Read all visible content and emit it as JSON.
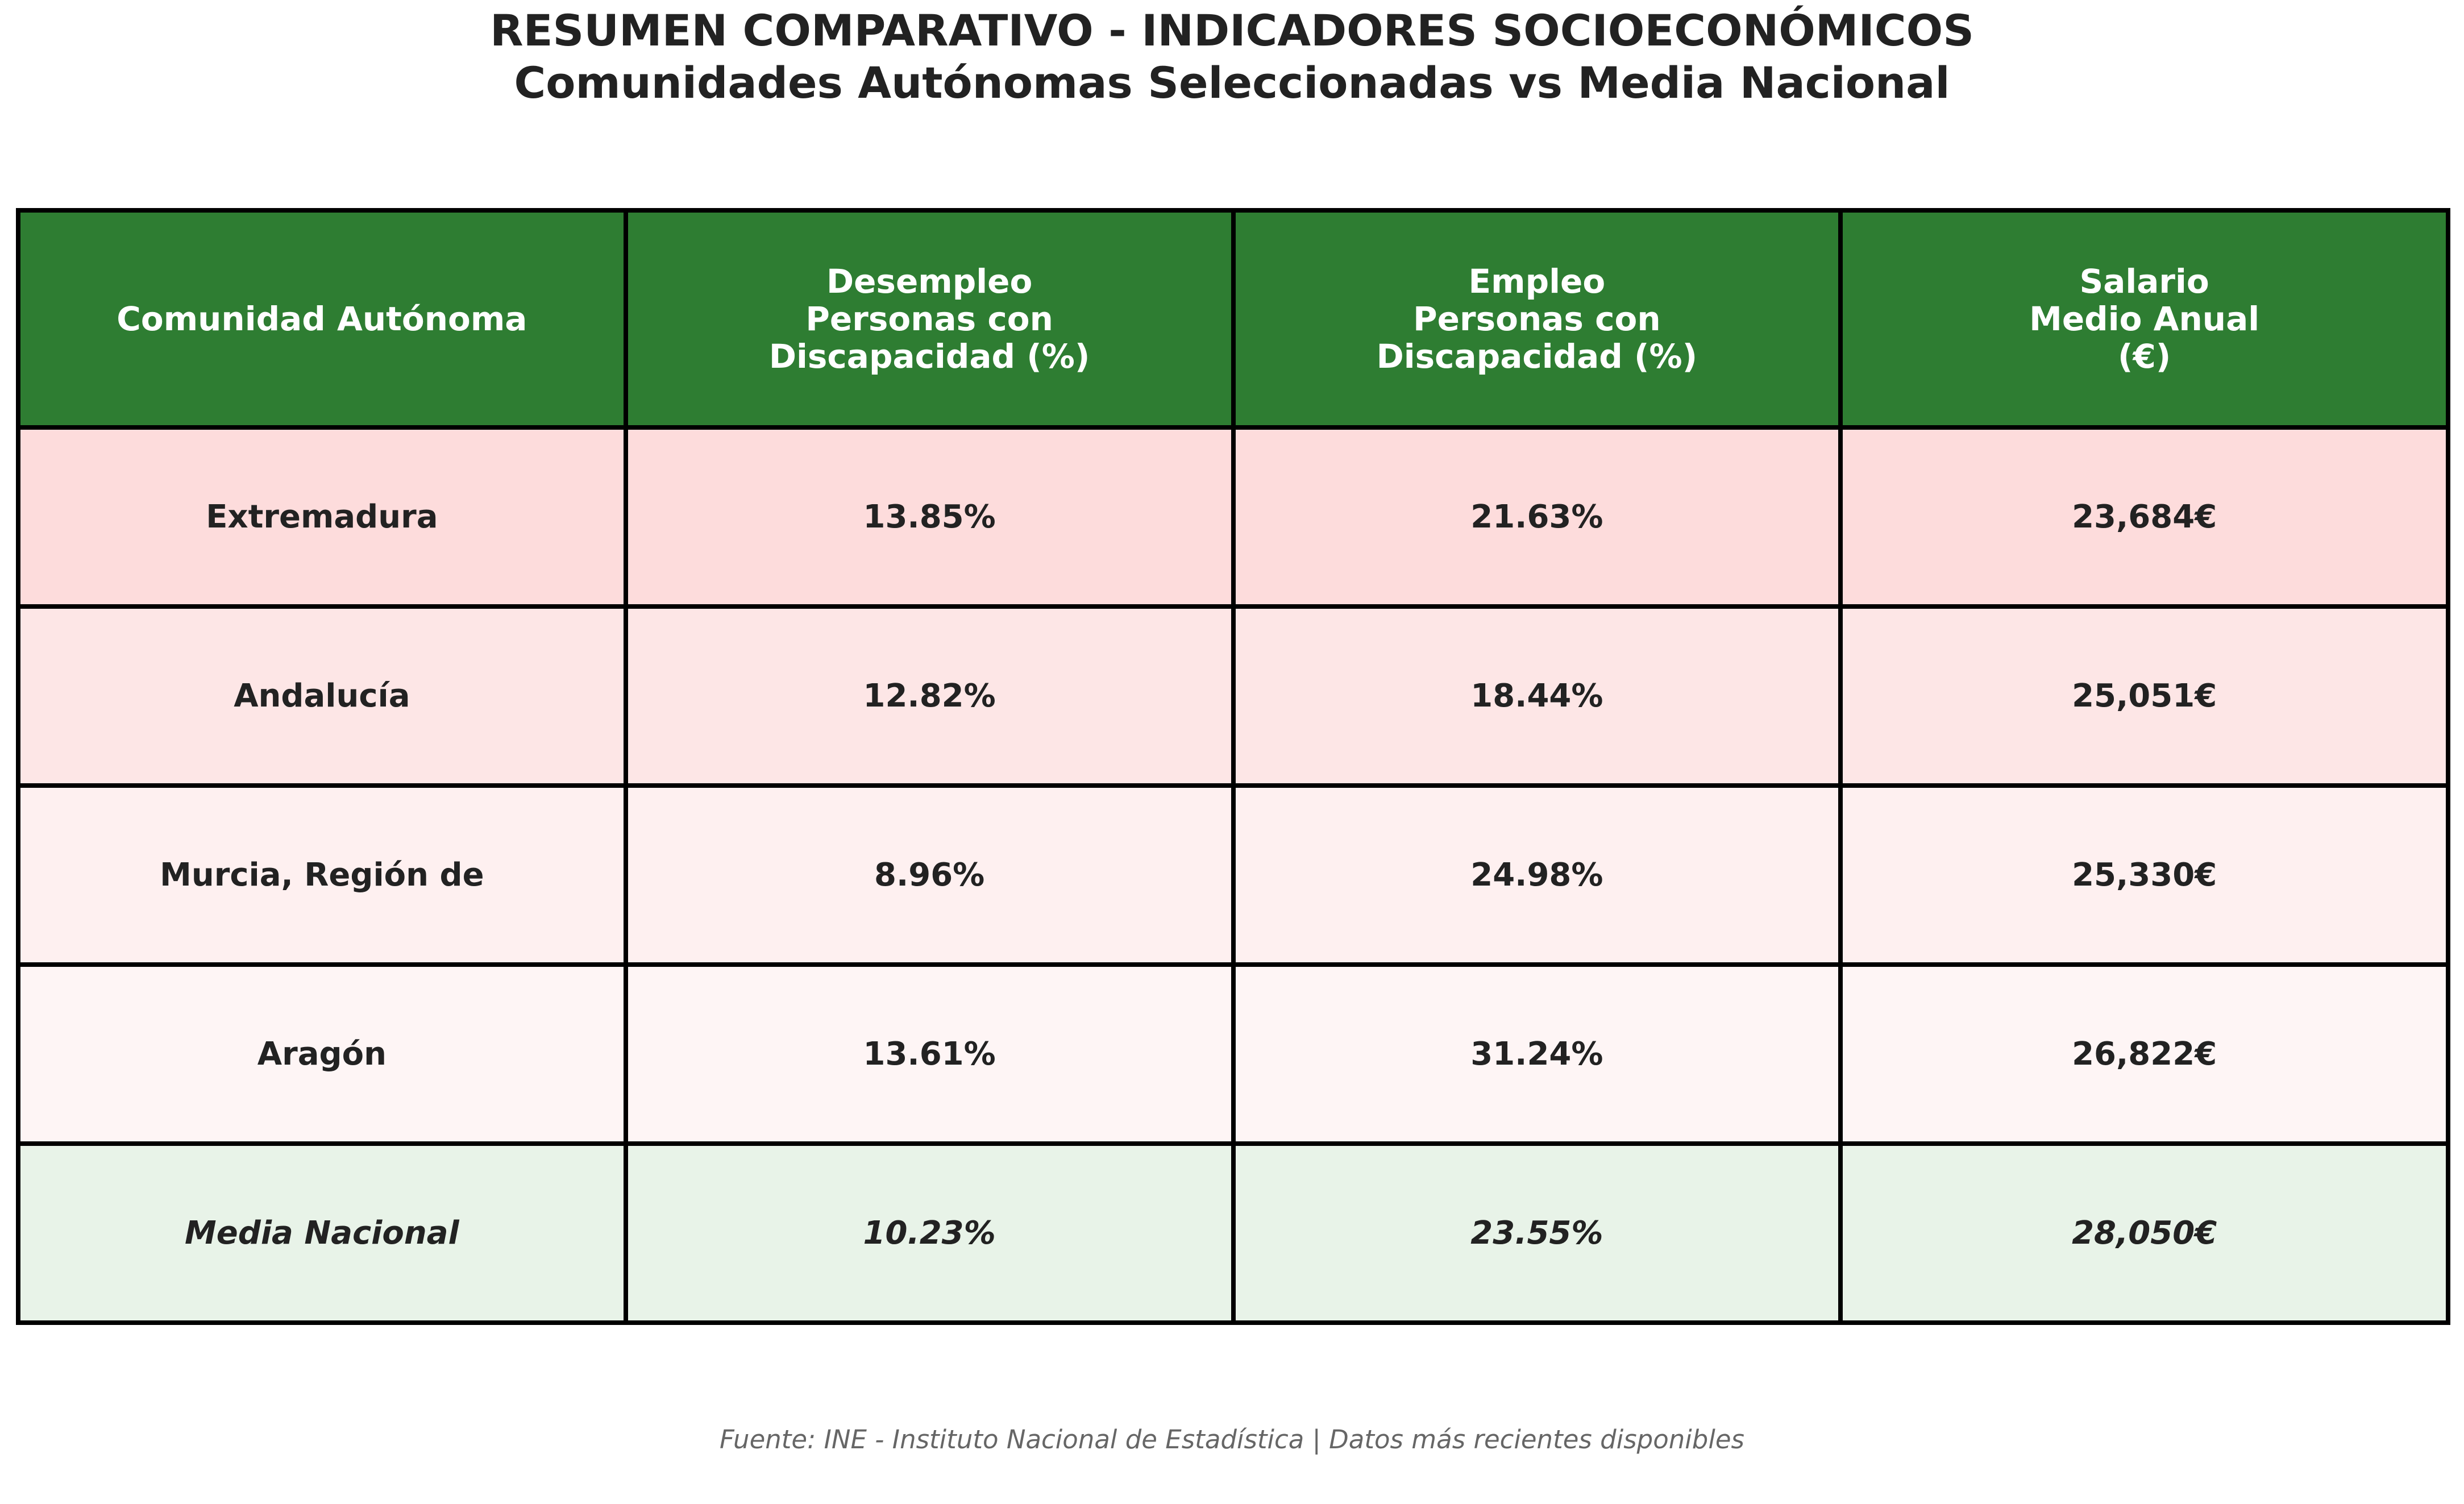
{
  "title": {
    "line1": "RESUMEN COMPARATIVO - INDICADORES SOCIOECONÓMICOS",
    "line2": "Comunidades Autónomas Seleccionadas vs Media Nacional"
  },
  "chart_data": {
    "type": "table",
    "columns": [
      "Comunidad Autónoma",
      "Desempleo\nPersonas con\nDiscapacidad (%)",
      "Empleo\nPersonas con\nDiscapacidad (%)",
      "Salario\nMedio Anual\n(€)"
    ],
    "rows": [
      {
        "name": "Extremadura",
        "desempleo": "13.85%",
        "empleo": "21.63%",
        "salario": "23,684€",
        "bg": "#fddcdc"
      },
      {
        "name": "Andalucía",
        "desempleo": "12.82%",
        "empleo": "18.44%",
        "salario": "25,051€",
        "bg": "#fde6e6"
      },
      {
        "name": "Murcia, Región de",
        "desempleo": "8.96%",
        "empleo": "24.98%",
        "salario": "25,330€",
        "bg": "#fef0f0"
      },
      {
        "name": "Aragón",
        "desempleo": "13.61%",
        "empleo": "31.24%",
        "salario": "26,822€",
        "bg": "#fef5f5"
      },
      {
        "name": "Media Nacional",
        "desempleo": "10.23%",
        "empleo": "23.55%",
        "salario": "28,050€",
        "bg": "#e8f3e8",
        "national": true
      }
    ],
    "header_color": "#2e7d32"
  },
  "footer": "Fuente: INE - Instituto Nacional de Estadística | Datos más recientes disponibles"
}
